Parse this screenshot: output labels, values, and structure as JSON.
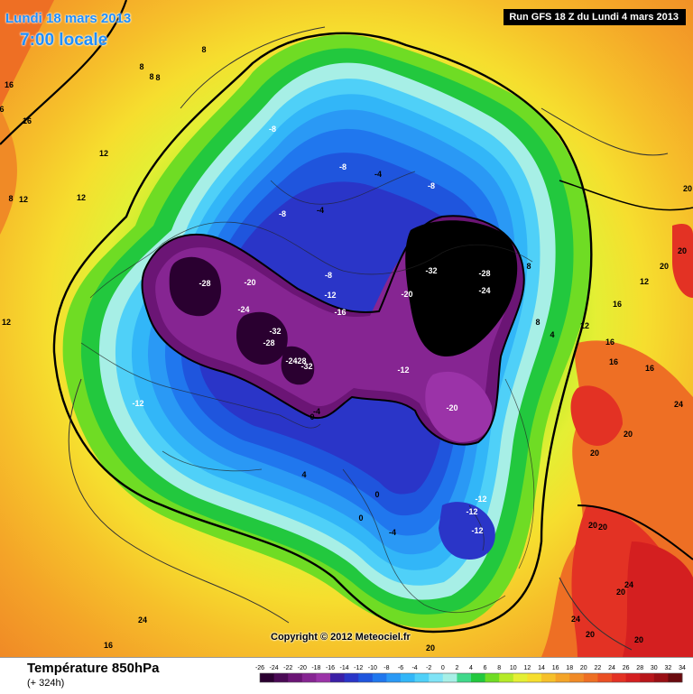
{
  "header": {
    "date": "Lundi 18 mars 2013",
    "time": "7:00 locale",
    "run": "Run GFS 18 Z du Lundi 4 mars 2013"
  },
  "footer": {
    "title": "Température 850hPa",
    "lead": "(+ 324h)",
    "copyright": "Copyright © 2012 Meteociel.fr"
  },
  "legend": {
    "ticks": [
      "-26",
      "-24",
      "-22",
      "-20",
      "-18",
      "-16",
      "-14",
      "-12",
      "-10",
      "-8",
      "-6",
      "-4",
      "-2",
      "0",
      "2",
      "4",
      "6",
      "8",
      "10",
      "12",
      "14",
      "16",
      "18",
      "20",
      "22",
      "24",
      "26",
      "28",
      "30",
      "32",
      "34"
    ],
    "colors": [
      "#2a0030",
      "#4a0a55",
      "#6b1575",
      "#862592",
      "#9b33a8",
      "#3b1fa6",
      "#2a35c8",
      "#1f55dd",
      "#2077ee",
      "#2a99f5",
      "#32b6f8",
      "#4fd0f8",
      "#7fe3f6",
      "#a7efe6",
      "#3fd88a",
      "#22c83e",
      "#6fdc24",
      "#b5ea28",
      "#e4ef34",
      "#f6de2e",
      "#f6c02a",
      "#f4a428",
      "#f08a26",
      "#ee6f24",
      "#ea4f24",
      "#e33224",
      "#d41f20",
      "#b8161a",
      "#9a0f14",
      "#6a0a0e"
    ]
  },
  "map_labels": [
    {
      "text": "16",
      "name": "isotherm-label-16"
    },
    {
      "text": "6",
      "name": "isotherm-label-6"
    },
    {
      "text": "16",
      "name": "isotherm-label-16"
    },
    {
      "text": "8",
      "name": "isotherm-label-8"
    },
    {
      "text": "8",
      "name": "isotherm-label-8"
    },
    {
      "text": "8",
      "name": "isotherm-label-8"
    },
    {
      "text": "8",
      "name": "isotherm-label-8"
    },
    {
      "text": "12",
      "name": "isotherm-label-12"
    },
    {
      "text": "12",
      "name": "isotherm-label-12"
    },
    {
      "text": "12",
      "name": "isotherm-label-12"
    },
    {
      "text": "12",
      "name": "isotherm-label-12"
    },
    {
      "text": "-8",
      "name": "isotherm-label-m8"
    },
    {
      "text": "-8",
      "name": "isotherm-label-m8"
    },
    {
      "text": "-4",
      "name": "isotherm-label-m4"
    },
    {
      "text": "-8",
      "name": "isotherm-label-m8"
    },
    {
      "text": "-8",
      "name": "isotherm-label-m8"
    },
    {
      "text": "-4",
      "name": "isotherm-label-m4"
    },
    {
      "text": "-28",
      "name": "isotherm-label-m28"
    },
    {
      "text": "-20",
      "name": "isotherm-label-m20"
    },
    {
      "text": "-8",
      "name": "isotherm-label-m8"
    },
    {
      "text": "-32",
      "name": "isotherm-label-m32"
    },
    {
      "text": "-28",
      "name": "isotherm-label-m28"
    },
    {
      "text": "-24",
      "name": "isotherm-label-m24"
    },
    {
      "text": "-20",
      "name": "isotherm-label-m20"
    },
    {
      "text": "-12",
      "name": "isotherm-label-m12"
    },
    {
      "text": "-24",
      "name": "isotherm-label-m24"
    },
    {
      "text": "-16",
      "name": "isotherm-label-m16"
    },
    {
      "text": "-32",
      "name": "isotherm-label-m32"
    },
    {
      "text": "-28",
      "name": "isotherm-label-m28"
    },
    {
      "text": "-24",
      "name": "isotherm-label-m24"
    },
    {
      "text": "-28",
      "name": "isotherm-label-m28"
    },
    {
      "text": "-32",
      "name": "isotherm-label-m32"
    },
    {
      "text": "-12",
      "name": "isotherm-label-m12"
    },
    {
      "text": "-20",
      "name": "isotherm-label-m20"
    },
    {
      "text": "-12",
      "name": "isotherm-label-m12"
    },
    {
      "text": "-4",
      "name": "isotherm-label-m4"
    },
    {
      "text": "0",
      "name": "isotherm-label-0"
    },
    {
      "text": "4",
      "name": "isotherm-label-4"
    },
    {
      "text": "0",
      "name": "isotherm-label-0"
    },
    {
      "text": "0",
      "name": "isotherm-label-0"
    },
    {
      "text": "-4",
      "name": "isotherm-label-m4"
    },
    {
      "text": "-12",
      "name": "isotherm-label-m12"
    },
    {
      "text": "-12",
      "name": "isotherm-label-m12"
    },
    {
      "text": "-12",
      "name": "isotherm-label-m12"
    },
    {
      "text": "8",
      "name": "isotherm-label-8"
    },
    {
      "text": "4",
      "name": "isotherm-label-4"
    },
    {
      "text": "12",
      "name": "isotherm-label-12"
    },
    {
      "text": "16",
      "name": "isotherm-label-16"
    },
    {
      "text": "16",
      "name": "isotherm-label-16"
    },
    {
      "text": "16",
      "name": "isotherm-label-16"
    },
    {
      "text": "12",
      "name": "isotherm-label-12"
    },
    {
      "text": "16",
      "name": "isotherm-label-16"
    },
    {
      "text": "20",
      "name": "isotherm-label-20"
    },
    {
      "text": "20",
      "name": "isotherm-label-20"
    },
    {
      "text": "20",
      "name": "isotherm-label-20"
    },
    {
      "text": "24",
      "name": "isotherm-label-24"
    },
    {
      "text": "20",
      "name": "isotherm-label-20"
    },
    {
      "text": "20",
      "name": "isotherm-label-20"
    },
    {
      "text": "20",
      "name": "isotherm-label-20"
    },
    {
      "text": "20",
      "name": "isotherm-label-20"
    },
    {
      "text": "24",
      "name": "isotherm-label-24"
    },
    {
      "text": "20",
      "name": "isotherm-label-20"
    },
    {
      "text": "20",
      "name": "isotherm-label-20"
    },
    {
      "text": "24",
      "name": "isotherm-label-24"
    },
    {
      "text": "20",
      "name": "isotherm-label-20"
    },
    {
      "text": "24",
      "name": "isotherm-label-24"
    },
    {
      "text": "16",
      "name": "isotherm-label-16"
    },
    {
      "text": "20",
      "name": "isotherm-label-20"
    },
    {
      "text": "8",
      "name": "isotherm-label-8"
    },
    {
      "text": "8",
      "name": "isotherm-label-8"
    },
    {
      "text": "12",
      "name": "isotherm-label-12"
    },
    {
      "text": "12",
      "name": "isotherm-label-12"
    }
  ]
}
